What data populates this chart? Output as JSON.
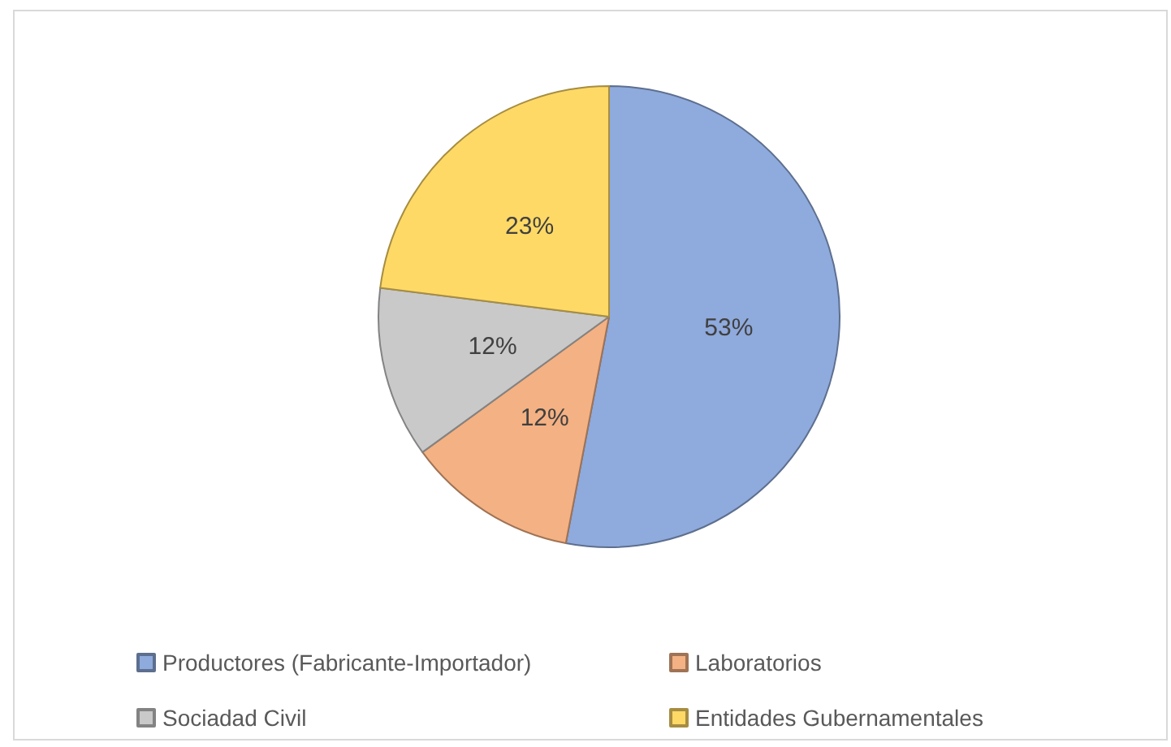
{
  "chart_data": {
    "type": "pie",
    "categories": [
      "Productores (Fabricante-Importador)",
      "Laboratorios",
      "Sociadad Civil",
      "Entidades Gubernamentales"
    ],
    "values": [
      53,
      12,
      12,
      23
    ],
    "colors": [
      "#8faadc",
      "#f4b183",
      "#c9c9c9",
      "#ffd966"
    ],
    "value_labels": [
      "53%",
      "12%",
      "12%",
      "23%"
    ],
    "legend": "bottom"
  }
}
